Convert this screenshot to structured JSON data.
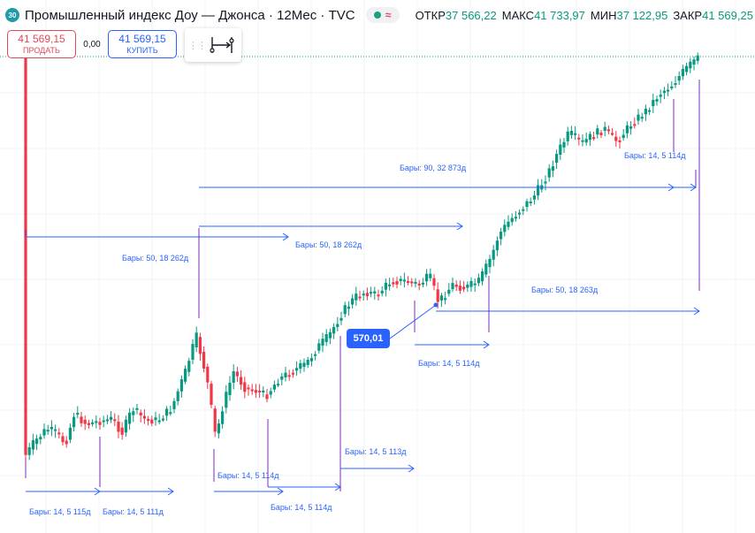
{
  "header": {
    "symbol_badge": "30",
    "title": "Промышленный индекс Доу — Джонса · 12Мес · TVC",
    "open_label": "ОТКР",
    "open_value": "37 566,22",
    "high_label": "МАКС",
    "high_value": "41 733,97",
    "low_label": "МИН",
    "low_value": "37 122,95",
    "close_label": "ЗАКР",
    "close_value": "41 569,25"
  },
  "trade": {
    "sell_price": "41 569,15",
    "sell_label": "ПРОДАТЬ",
    "spread": "0,00",
    "buy_price": "41 569,15",
    "buy_label": "КУПИТЬ"
  },
  "toolbar": {
    "grip_icon": "drag-handle-icon",
    "tool_icon": "date-range-tool-icon"
  },
  "callout": {
    "value": "570,01"
  },
  "colors": {
    "up": "#089981",
    "down": "#f23645",
    "measure": "#2962ff",
    "vline": "#7b2cbf",
    "grid": "#f0f3fa",
    "price_line": "#089981"
  },
  "measurements": [
    {
      "label": "Бары: 14, 5 115д"
    },
    {
      "label": "Бары: 14, 5 111д"
    },
    {
      "label": "Бары: 14, 5 114д"
    },
    {
      "label": "Бары: 14, 5 114д"
    },
    {
      "label": "Бары: 14, 5 113д"
    },
    {
      "label": "Бары: 14, 5 114д"
    },
    {
      "label": "Бары: 14, 5 114д"
    },
    {
      "label": "Бары: 50, 18 262д"
    },
    {
      "label": "Бары: 50, 18 262д"
    },
    {
      "label": "Бары: 90, 32 873д"
    },
    {
      "label": "Бары: 50, 18 263д"
    }
  ]
}
